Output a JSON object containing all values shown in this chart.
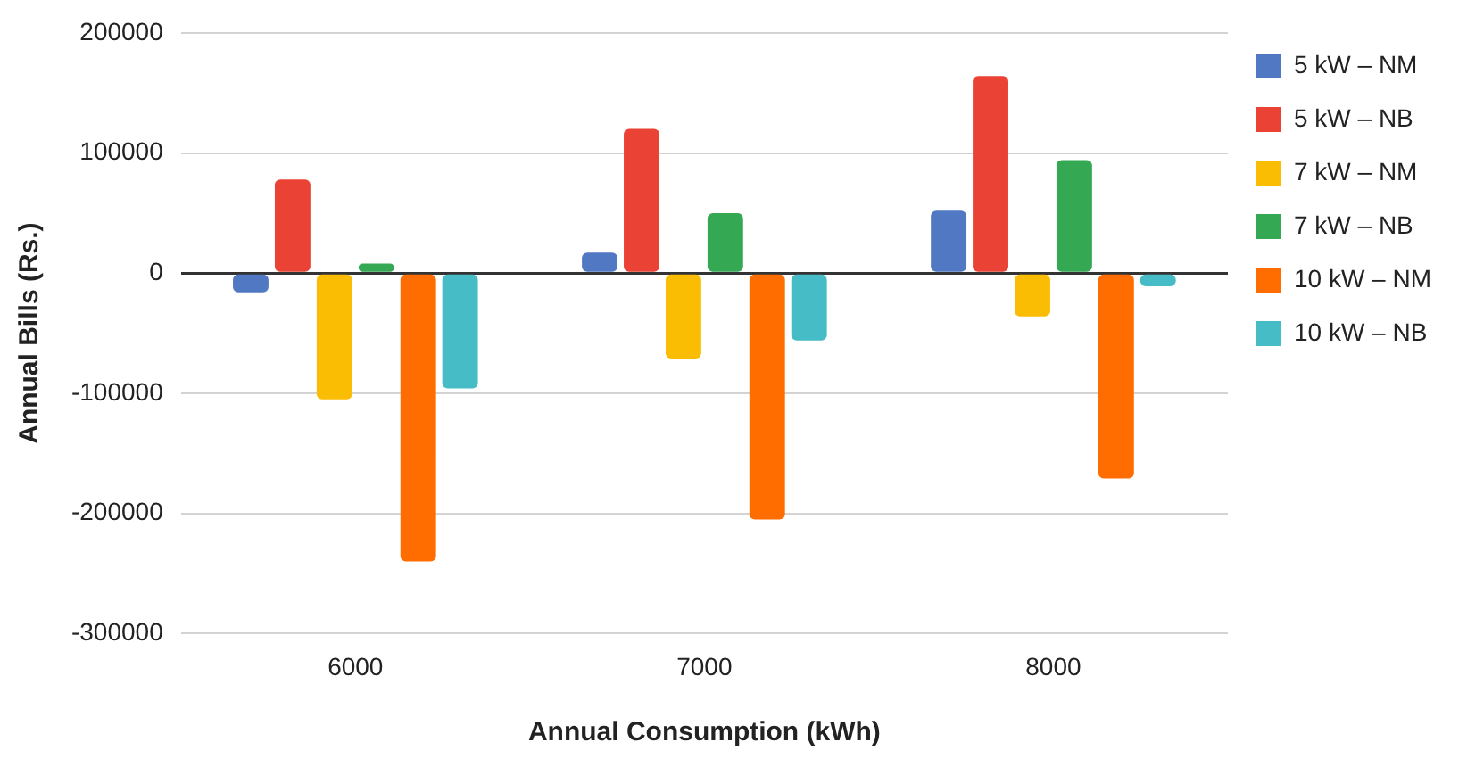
{
  "chart_data": {
    "type": "bar",
    "xlabel": "Annual Consumption (kWh)",
    "ylabel": "Annual Bills (Rs.)",
    "categories": [
      "6000",
      "7000",
      "8000"
    ],
    "series": [
      {
        "name": "5 kW – NM",
        "color": "#5179c3",
        "values": [
          -16000,
          17000,
          52000
        ]
      },
      {
        "name": "5 kW – NB",
        "color": "#ea4335",
        "values": [
          78000,
          120000,
          164000
        ]
      },
      {
        "name": "7 kW – NM",
        "color": "#fbbc04",
        "values": [
          -105000,
          -71000,
          -36000
        ]
      },
      {
        "name": "7 kW – NB",
        "color": "#34a853",
        "values": [
          8000,
          50000,
          94000
        ]
      },
      {
        "name": "10 kW – NM",
        "color": "#ff6d01",
        "values": [
          -240000,
          -205000,
          -171000
        ]
      },
      {
        "name": "10 kW – NB",
        "color": "#46bdc6",
        "values": [
          -96000,
          -56000,
          -11000
        ]
      }
    ],
    "ylim": [
      -300000,
      200000
    ],
    "yticks": [
      -300000,
      -200000,
      -100000,
      0,
      100000,
      200000
    ],
    "grid": "y",
    "legend": "top right"
  }
}
